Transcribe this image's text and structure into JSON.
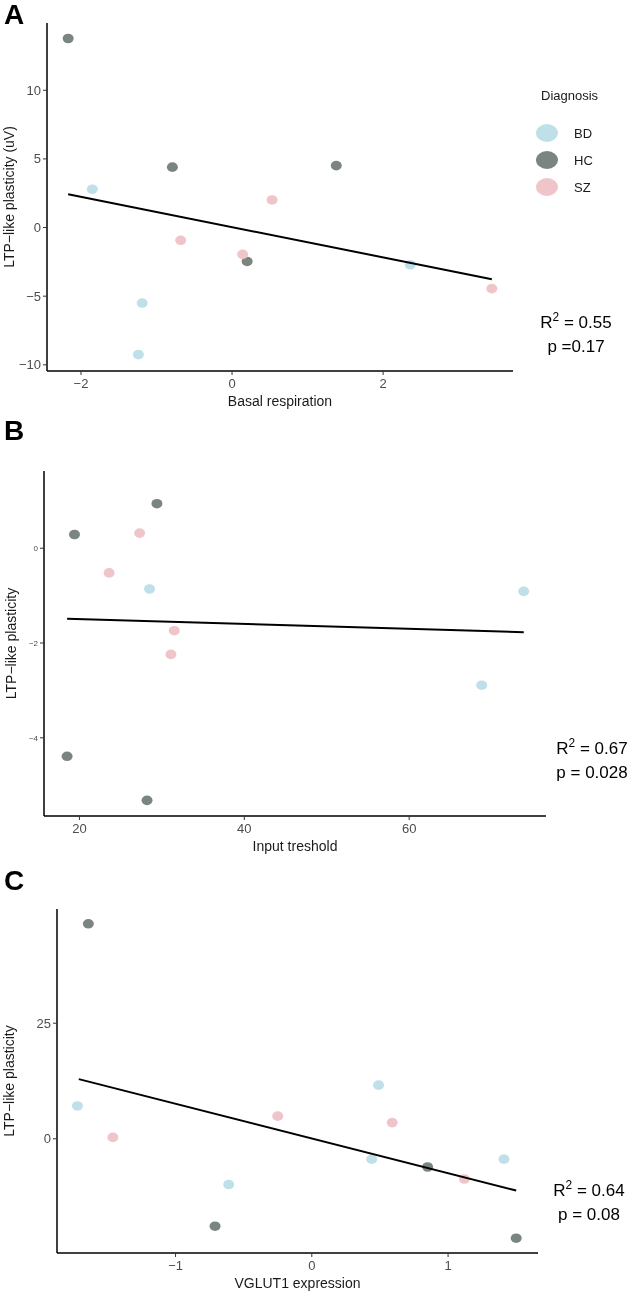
{
  "chart_data": [
    {
      "type": "scatter",
      "title": "A",
      "xlabel": "Basal respiration",
      "ylabel": "LTP−like plasticity (uV)",
      "legend_title": "Diagnosis",
      "legend": "right",
      "marker": "circle",
      "xlim": [
        -2.45,
        3.72
      ],
      "ylim": [
        -10.45,
        14.9
      ],
      "xticks": [
        {
          "value": -2,
          "label": "−2"
        },
        0,
        2
      ],
      "yticks": [
        {
          "value": -10,
          "label": "−10"
        },
        {
          "value": -5,
          "label": "−5"
        },
        0,
        5,
        10
      ],
      "annotations": [
        "R$^{2}$ = 0.55",
        "p =0.17"
      ],
      "series": [
        {
          "name": "BD",
          "color": "#bfe0e9",
          "x": [
            -1.85,
            -1.19,
            -1.24,
            2.36
          ],
          "values": [
            2.79,
            -5.5,
            -9.26,
            -2.71
          ]
        },
        {
          "name": "HC",
          "color": "#7a8581",
          "x": [
            -2.17,
            -0.79,
            1.38,
            0.2
          ],
          "values": [
            13.77,
            4.4,
            4.51,
            -2.47
          ]
        },
        {
          "name": "SZ",
          "color": "#f0c5ca",
          "x": [
            0.53,
            -0.68,
            0.14,
            3.44
          ],
          "values": [
            2.01,
            -0.93,
            -1.95,
            -4.45
          ]
        },
        {
          "type": "line",
          "color": "#000000",
          "marker": "none",
          "x": [
            -2.17,
            3.44
          ],
          "values": [
            2.42,
            -3.76
          ]
        }
      ]
    },
    {
      "type": "scatter",
      "title": "B",
      "xlabel": "Input treshold",
      "ylabel": "LTP−like plasticity",
      "marker": "circle",
      "xlim": [
        15.7,
        76.6
      ],
      "ylim": [
        -5.65,
        1.63
      ],
      "xticks": [
        20,
        40,
        60
      ],
      "yticks": [
        {
          "value": -4,
          "label": "−4"
        },
        {
          "value": -2,
          "label": "−2"
        },
        0
      ],
      "annotations": [
        "R$^{2}$= 0.67",
        "p = 0.028"
      ],
      "series": [
        {
          "color": "#bfe0e9",
          "x": [
            28.5,
            73.9,
            68.8
          ],
          "values": [
            -0.86,
            -0.91,
            -2.89
          ]
        },
        {
          "color": "#7a8581",
          "x": [
            29.4,
            19.4,
            18.5,
            28.2
          ],
          "values": [
            0.94,
            0.29,
            -4.39,
            -5.32
          ]
        },
        {
          "color": "#f0c5ca",
          "x": [
            27.3,
            23.6,
            31.5,
            31.1
          ],
          "values": [
            0.32,
            -0.52,
            -1.74,
            -2.24
          ]
        },
        {
          "type": "line",
          "color": "#000000",
          "marker": "none",
          "x": [
            18.5,
            73.9
          ],
          "values": [
            -1.49,
            -1.77
          ]
        }
      ]
    },
    {
      "type": "scatter",
      "title": "C",
      "xlabel": "VGLUT1 expression",
      "ylabel": "LTP−like plasticity",
      "marker": "circle",
      "xlim": [
        -1.87,
        1.66
      ],
      "ylim": [
        -24.7,
        49.7
      ],
      "xticks": [
        {
          "value": -1,
          "label": "−1"
        },
        0,
        1
      ],
      "yticks": [
        0,
        25
      ],
      "annotations": [
        "R$^{2}$ = 0.64",
        "p = 0.08"
      ],
      "series": [
        {
          "color": "#bfe0e9",
          "x": [
            -1.72,
            -0.61,
            0.44,
            0.49,
            1.41
          ],
          "values": [
            7.1,
            -9.9,
            -4.4,
            11.6,
            -4.4
          ]
        },
        {
          "color": "#7a8581",
          "x": [
            -1.64,
            -0.71,
            0.85,
            1.5
          ],
          "values": [
            46.5,
            -18.9,
            -6.1,
            -21.5
          ]
        },
        {
          "color": "#f0c5ca",
          "x": [
            -1.46,
            -0.25,
            0.59,
            1.12
          ],
          "values": [
            0.3,
            4.9,
            3.5,
            -8.7
          ]
        },
        {
          "type": "line",
          "color": "#000000",
          "marker": "none",
          "x": [
            -1.71,
            1.5
          ],
          "values": [
            12.9,
            -11.2
          ]
        }
      ]
    }
  ]
}
